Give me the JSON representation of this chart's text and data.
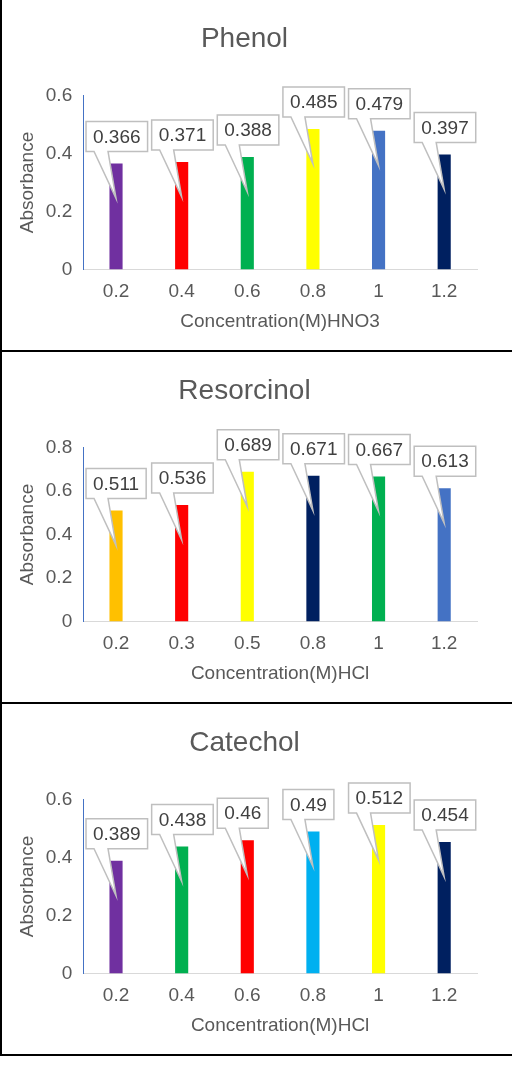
{
  "chart_data": [
    {
      "type": "bar",
      "title": "Phenol",
      "xlabel": "Concentration(M)HNO3",
      "ylabel": "Absorbance",
      "categories": [
        "0.2",
        "0.4",
        "0.6",
        "0.8",
        "1",
        "1.2"
      ],
      "values": [
        0.366,
        0.371,
        0.388,
        0.485,
        0.479,
        0.397
      ],
      "colors": [
        "#7030a0",
        "#ff0000",
        "#00b050",
        "#ffff00",
        "#4472c4",
        "#002060"
      ],
      "ylim": [
        0,
        0.6
      ],
      "yticks": [
        0,
        0.2,
        0.4,
        0.6
      ],
      "data_labels": true,
      "grid": false,
      "legend": false
    },
    {
      "type": "bar",
      "title": "Resorcinol",
      "xlabel": "Concentration(M)HCl",
      "ylabel": "Absorbance",
      "categories": [
        "0.2",
        "0.3",
        "0.5",
        "0.8",
        "1",
        "1.2"
      ],
      "values": [
        0.511,
        0.536,
        0.689,
        0.671,
        0.667,
        0.613
      ],
      "colors": [
        "#ffc000",
        "#ff0000",
        "#ffff00",
        "#002060",
        "#00b050",
        "#4472c4"
      ],
      "ylim": [
        0,
        0.8
      ],
      "yticks": [
        0,
        0.2,
        0.4,
        0.6,
        0.8
      ],
      "data_labels": true,
      "grid": false,
      "legend": false
    },
    {
      "type": "bar",
      "title": "Catechol",
      "xlabel": "Concentration(M)HCl",
      "ylabel": "Absorbance",
      "categories": [
        "0.2",
        "0.4",
        "0.6",
        "0.8",
        "1",
        "1.2"
      ],
      "values": [
        0.389,
        0.438,
        0.46,
        0.49,
        0.512,
        0.454
      ],
      "colors": [
        "#7030a0",
        "#00b050",
        "#ff0000",
        "#00b0f0",
        "#ffff00",
        "#002060"
      ],
      "ylim": [
        0,
        0.6
      ],
      "yticks": [
        0,
        0.2,
        0.4,
        0.6
      ],
      "data_labels": true,
      "grid": false,
      "legend": false
    }
  ]
}
